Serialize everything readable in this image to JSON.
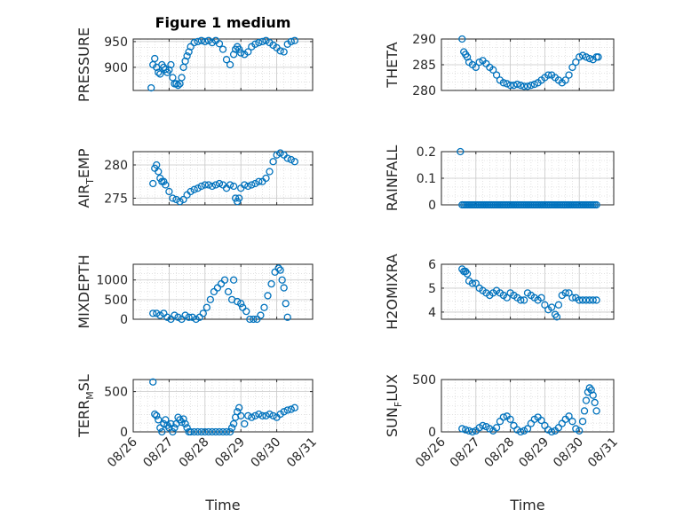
{
  "figure": {
    "title": "Figure 1 medium"
  },
  "chart_data": [
    {
      "type": "scatter",
      "title": "Figure 1 medium",
      "ylabel": "PRESSURE",
      "xlabel": "",
      "ylim": [
        855,
        955
      ],
      "yticks": [
        900,
        950
      ],
      "xlim": [
        0,
        5
      ],
      "grid": true,
      "x": [
        0.5,
        0.55,
        0.6,
        0.65,
        0.7,
        0.75,
        0.8,
        0.85,
        0.9,
        0.95,
        1.0,
        1.05,
        1.1,
        1.15,
        1.2,
        1.25,
        1.3,
        1.35,
        1.4,
        1.45,
        1.5,
        1.55,
        1.6,
        1.7,
        1.8,
        1.9,
        2.0,
        2.1,
        2.2,
        2.3,
        2.4,
        2.5,
        2.6,
        2.7,
        2.8,
        2.85,
        2.9,
        2.95,
        3.0,
        3.1,
        3.2,
        3.3,
        3.4,
        3.5,
        3.6,
        3.7,
        3.8,
        3.9,
        4.0,
        4.1,
        4.2,
        4.3,
        4.4,
        4.5
      ],
      "y": [
        860,
        905,
        917,
        900,
        890,
        887,
        905,
        900,
        896,
        890,
        895,
        905,
        880,
        868,
        868,
        865,
        868,
        880,
        900,
        912,
        922,
        930,
        940,
        948,
        950,
        952,
        950,
        952,
        948,
        952,
        946,
        935,
        915,
        905,
        925,
        935,
        940,
        935,
        928,
        925,
        930,
        940,
        945,
        948,
        950,
        952,
        948,
        943,
        938,
        932,
        930,
        945,
        950,
        952
      ]
    },
    {
      "type": "scatter",
      "title": "",
      "ylabel": "THETA",
      "xlabel": "",
      "ylim": [
        280,
        290
      ],
      "yticks": [
        280,
        285,
        290
      ],
      "xlim": [
        0,
        5
      ],
      "grid": true,
      "x": [
        0.6,
        0.65,
        0.7,
        0.75,
        0.8,
        0.9,
        1.0,
        1.1,
        1.2,
        1.3,
        1.4,
        1.5,
        1.6,
        1.7,
        1.8,
        1.9,
        2.0,
        2.1,
        2.2,
        2.3,
        2.4,
        2.5,
        2.6,
        2.7,
        2.8,
        2.9,
        3.0,
        3.1,
        3.2,
        3.3,
        3.4,
        3.5,
        3.6,
        3.7,
        3.8,
        3.9,
        4.0,
        4.1,
        4.2,
        4.3,
        4.4,
        4.5,
        4.55
      ],
      "y": [
        290,
        287.5,
        287,
        286.5,
        285.5,
        285,
        284.5,
        285.5,
        285.8,
        285.2,
        284.5,
        284,
        283,
        282,
        281.5,
        281.3,
        281,
        281,
        281.2,
        281,
        280.8,
        280.8,
        281,
        281.2,
        281.5,
        282,
        282.5,
        283,
        283,
        282.5,
        282,
        281.5,
        282,
        283,
        284.5,
        285.5,
        286.5,
        286.8,
        286.5,
        286.2,
        286,
        286.5,
        286.5
      ]
    },
    {
      "type": "scatter",
      "title": "",
      "ylabel": "AIR_TEMP",
      "xlabel": "",
      "ylim": [
        274,
        282
      ],
      "yticks": [
        275,
        280
      ],
      "xlim": [
        0,
        5
      ],
      "grid": true,
      "x": [
        0.55,
        0.6,
        0.65,
        0.7,
        0.75,
        0.8,
        0.85,
        0.9,
        1.0,
        1.1,
        1.2,
        1.3,
        1.4,
        1.5,
        1.6,
        1.7,
        1.8,
        1.9,
        2.0,
        2.1,
        2.2,
        2.3,
        2.4,
        2.5,
        2.6,
        2.7,
        2.8,
        2.85,
        2.9,
        2.95,
        3.0,
        3.1,
        3.2,
        3.3,
        3.4,
        3.5,
        3.6,
        3.7,
        3.8,
        3.9,
        4.0,
        4.1,
        4.2,
        4.3,
        4.4,
        4.5
      ],
      "y": [
        277.2,
        279.5,
        280,
        279,
        278,
        277.5,
        277.5,
        277,
        276,
        275,
        274.8,
        274.5,
        274.8,
        275.5,
        276,
        276.3,
        276.5,
        276.8,
        277,
        277,
        276.8,
        277,
        277.2,
        277,
        276.5,
        277,
        276.8,
        275,
        274.5,
        275,
        276.5,
        277,
        276.8,
        277,
        277.2,
        277.5,
        277.5,
        278,
        279,
        280.5,
        281.5,
        281.8,
        281.5,
        281,
        280.8,
        280.5
      ]
    },
    {
      "type": "scatter",
      "title": "",
      "ylabel": "RAINFALL",
      "xlabel": "",
      "ylim": [
        0,
        0.2
      ],
      "yticks": [
        0,
        0.1,
        0.2
      ],
      "xlim": [
        0,
        5
      ],
      "grid": true,
      "x": [
        0.55,
        0.6,
        0.65,
        0.7,
        0.75,
        0.8,
        0.85,
        0.9,
        0.95,
        1.0,
        1.05,
        1.1,
        1.15,
        1.2,
        1.25,
        1.3,
        1.35,
        1.4,
        1.45,
        1.5,
        1.55,
        1.6,
        1.65,
        1.7,
        1.75,
        1.8,
        1.85,
        1.9,
        1.95,
        2.0,
        2.05,
        2.1,
        2.15,
        2.2,
        2.25,
        2.3,
        2.35,
        2.4,
        2.45,
        2.5,
        2.55,
        2.6,
        2.65,
        2.7,
        2.75,
        2.8,
        2.85,
        2.9,
        2.95,
        3.0,
        3.05,
        3.1,
        3.15,
        3.2,
        3.25,
        3.3,
        3.35,
        3.4,
        3.45,
        3.5,
        3.55,
        3.6,
        3.65,
        3.7,
        3.75,
        3.8,
        3.85,
        3.9,
        3.95,
        4.0,
        4.05,
        4.1,
        4.15,
        4.2,
        4.25,
        4.3,
        4.35,
        4.4,
        4.45,
        4.5
      ],
      "y": [
        0.2,
        0,
        0,
        0,
        0,
        0,
        0,
        0,
        0,
        0,
        0,
        0,
        0,
        0,
        0,
        0,
        0,
        0,
        0,
        0,
        0,
        0,
        0,
        0,
        0,
        0,
        0,
        0,
        0,
        0,
        0,
        0,
        0,
        0,
        0,
        0,
        0,
        0,
        0,
        0,
        0,
        0,
        0,
        0,
        0,
        0,
        0,
        0,
        0,
        0,
        0,
        0,
        0,
        0,
        0,
        0,
        0,
        0,
        0,
        0,
        0,
        0,
        0,
        0,
        0,
        0,
        0,
        0,
        0,
        0,
        0,
        0,
        0,
        0,
        0,
        0,
        0,
        0,
        0,
        0
      ]
    },
    {
      "type": "scatter",
      "title": "",
      "ylabel": "MIXDEPTH",
      "xlabel": "",
      "ylim": [
        0,
        1400
      ],
      "yticks": [
        0,
        500,
        1000
      ],
      "xlim": [
        0,
        5
      ],
      "grid": true,
      "x": [
        0.55,
        0.65,
        0.75,
        0.85,
        0.95,
        1.05,
        1.15,
        1.25,
        1.35,
        1.45,
        1.55,
        1.65,
        1.75,
        1.85,
        1.95,
        2.05,
        2.15,
        2.25,
        2.35,
        2.45,
        2.55,
        2.65,
        2.75,
        2.8,
        2.9,
        3.0,
        3.05,
        3.15,
        3.25,
        3.35,
        3.45,
        3.55,
        3.65,
        3.75,
        3.85,
        3.95,
        4.05,
        4.1,
        4.15,
        4.2,
        4.25,
        4.3
      ],
      "y": [
        150,
        150,
        100,
        150,
        50,
        0,
        100,
        50,
        0,
        100,
        50,
        50,
        0,
        50,
        150,
        300,
        500,
        700,
        800,
        900,
        1000,
        700,
        500,
        1000,
        450,
        400,
        300,
        200,
        0,
        0,
        0,
        100,
        300,
        600,
        900,
        1200,
        1300,
        1250,
        1000,
        800,
        400,
        50
      ]
    },
    {
      "type": "scatter",
      "title": "",
      "ylabel": "H2OMIXRA",
      "xlabel": "",
      "ylim": [
        3.7,
        6
      ],
      "yticks": [
        4,
        5,
        6
      ],
      "xlim": [
        0,
        5
      ],
      "grid": true,
      "x": [
        0.6,
        0.65,
        0.7,
        0.75,
        0.8,
        0.9,
        1.0,
        1.1,
        1.2,
        1.3,
        1.4,
        1.5,
        1.6,
        1.7,
        1.8,
        1.9,
        2.0,
        2.1,
        2.2,
        2.3,
        2.4,
        2.5,
        2.6,
        2.7,
        2.8,
        2.9,
        3.0,
        3.1,
        3.2,
        3.3,
        3.35,
        3.4,
        3.5,
        3.6,
        3.7,
        3.8,
        3.9,
        4.0,
        4.1,
        4.2,
        4.3,
        4.4,
        4.5
      ],
      "y": [
        5.8,
        5.7,
        5.7,
        5.6,
        5.3,
        5.2,
        5.2,
        5.0,
        4.9,
        4.8,
        4.7,
        4.8,
        4.9,
        4.8,
        4.7,
        4.6,
        4.8,
        4.7,
        4.6,
        4.5,
        4.5,
        4.8,
        4.7,
        4.6,
        4.5,
        4.6,
        4.3,
        4.1,
        4.2,
        3.9,
        3.8,
        4.3,
        4.7,
        4.8,
        4.8,
        4.6,
        4.6,
        4.5,
        4.5,
        4.5,
        4.5,
        4.5,
        4.5
      ]
    },
    {
      "type": "scatter",
      "title": "",
      "ylabel": "TERR_MSL",
      "xlabel": "Time",
      "ylim": [
        0,
        650
      ],
      "yticks": [
        0,
        500
      ],
      "xlim": [
        0,
        5
      ],
      "xticklabels": [
        "08/26",
        "08/27",
        "08/28",
        "08/29",
        "08/30",
        "08/31"
      ],
      "grid": true,
      "x": [
        0.55,
        0.6,
        0.65,
        0.7,
        0.75,
        0.8,
        0.85,
        0.9,
        0.95,
        1.0,
        1.05,
        1.1,
        1.15,
        1.2,
        1.25,
        1.3,
        1.35,
        1.4,
        1.45,
        1.5,
        1.55,
        1.6,
        1.7,
        1.8,
        1.9,
        2.0,
        2.1,
        2.2,
        2.3,
        2.4,
        2.5,
        2.6,
        2.7,
        2.75,
        2.8,
        2.85,
        2.9,
        2.95,
        3.0,
        3.1,
        3.2,
        3.3,
        3.4,
        3.5,
        3.6,
        3.7,
        3.8,
        3.9,
        4.0,
        4.1,
        4.2,
        4.3,
        4.4,
        4.5
      ],
      "y": [
        620,
        220,
        200,
        150,
        50,
        0,
        100,
        150,
        80,
        50,
        100,
        0,
        50,
        100,
        180,
        150,
        120,
        160,
        100,
        50,
        0,
        0,
        0,
        0,
        0,
        0,
        0,
        0,
        0,
        0,
        0,
        0,
        0,
        50,
        100,
        180,
        250,
        300,
        200,
        100,
        200,
        180,
        200,
        220,
        200,
        200,
        220,
        200,
        180,
        220,
        250,
        270,
        280,
        300
      ]
    },
    {
      "type": "scatter",
      "title": "",
      "ylabel": "SUN_FLUX",
      "xlabel": "Time",
      "ylim": [
        0,
        500
      ],
      "yticks": [
        0,
        500
      ],
      "xlim": [
        0,
        5
      ],
      "xticklabels": [
        "08/26",
        "08/27",
        "08/28",
        "08/29",
        "08/30",
        "08/31"
      ],
      "grid": true,
      "x": [
        0.6,
        0.7,
        0.8,
        0.9,
        1.0,
        1.1,
        1.2,
        1.3,
        1.4,
        1.5,
        1.6,
        1.7,
        1.8,
        1.9,
        2.0,
        2.1,
        2.2,
        2.3,
        2.4,
        2.5,
        2.6,
        2.7,
        2.8,
        2.9,
        3.0,
        3.1,
        3.2,
        3.3,
        3.4,
        3.5,
        3.6,
        3.7,
        3.8,
        3.9,
        4.0,
        4.1,
        4.15,
        4.2,
        4.25,
        4.3,
        4.35,
        4.4,
        4.45,
        4.5
      ],
      "y": [
        30,
        20,
        10,
        0,
        10,
        40,
        60,
        50,
        30,
        10,
        40,
        100,
        140,
        150,
        120,
        60,
        20,
        0,
        10,
        30,
        80,
        120,
        140,
        110,
        60,
        20,
        0,
        10,
        40,
        80,
        120,
        150,
        100,
        30,
        10,
        100,
        200,
        300,
        380,
        420,
        400,
        350,
        280,
        200
      ]
    }
  ]
}
